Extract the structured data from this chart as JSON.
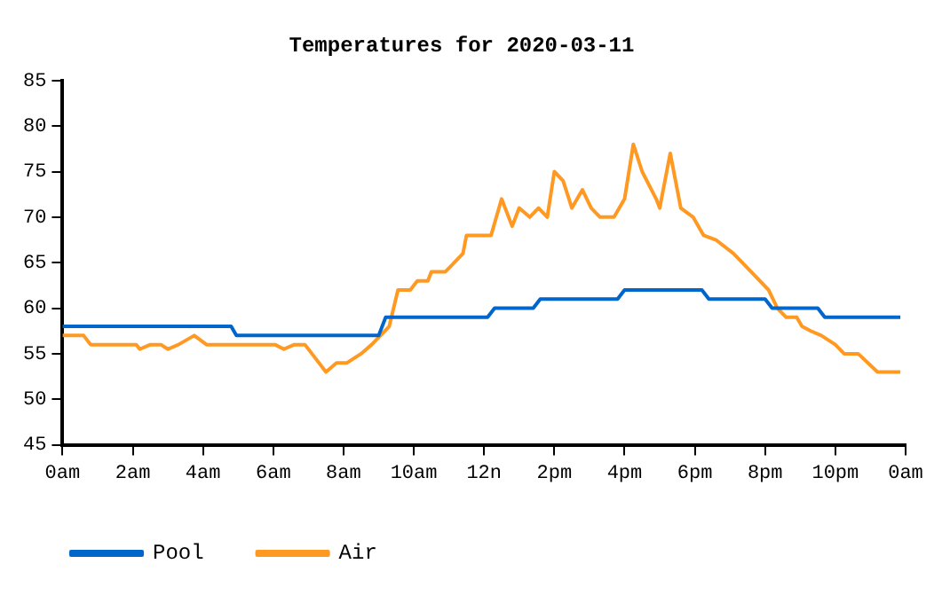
{
  "chart_data": {
    "type": "line",
    "title": "Temperatures for 2020-03-11",
    "xlim": [
      "2020-03-11T00:00",
      "2020-03-12T00:00"
    ],
    "xticks": [
      {
        "value": "2020-03-11T00:00",
        "label": "0am"
      },
      {
        "value": "2020-03-11T02:00",
        "label": "2am"
      },
      {
        "value": "2020-03-11T04:00",
        "label": "4am"
      },
      {
        "value": "2020-03-11T06:00",
        "label": "6am"
      },
      {
        "value": "2020-03-11T08:00",
        "label": "8am"
      },
      {
        "value": "2020-03-11T10:00",
        "label": "10am"
      },
      {
        "value": "2020-03-11T12:00",
        "label": "12n"
      },
      {
        "value": "2020-03-11T14:00",
        "label": "2pm"
      },
      {
        "value": "2020-03-11T16:00",
        "label": "4pm"
      },
      {
        "value": "2020-03-11T18:00",
        "label": "6pm"
      },
      {
        "value": "2020-03-11T20:00",
        "label": "8pm"
      },
      {
        "value": "2020-03-11T22:00",
        "label": "10pm"
      },
      {
        "value": "2020-03-12T00:00",
        "label": "0am"
      }
    ],
    "ylim": [
      45,
      85
    ],
    "yticks": [
      45,
      50,
      55,
      60,
      65,
      70,
      75,
      80,
      85
    ],
    "grid": false,
    "legend": "bottom left",
    "marker": "none",
    "line_style": "solid",
    "series": [
      {
        "name": "Pool",
        "color": "#0066cc",
        "x": [
          "2020-03-11T00:00",
          "2020-03-11T04:48",
          "2020-03-11T04:57",
          "2020-03-11T09:00",
          "2020-03-11T09:12",
          "2020-03-11T12:06",
          "2020-03-11T12:18",
          "2020-03-11T13:24",
          "2020-03-11T13:36",
          "2020-03-11T15:48",
          "2020-03-11T16:00",
          "2020-03-11T18:12",
          "2020-03-11T18:24",
          "2020-03-11T20:00",
          "2020-03-11T20:12",
          "2020-03-11T21:30",
          "2020-03-11T21:42",
          "2020-03-11T23:51"
        ],
        "values": [
          58,
          58,
          57,
          57,
          59,
          59,
          60,
          60,
          61,
          61,
          62,
          62,
          61,
          61,
          60,
          60,
          59,
          59
        ]
      },
      {
        "name": "Air",
        "color": "#ff9922",
        "x": [
          "2020-03-11T00:00",
          "2020-03-11T00:36",
          "2020-03-11T00:48",
          "2020-03-11T02:06",
          "2020-03-11T02:12",
          "2020-03-11T02:30",
          "2020-03-11T02:48",
          "2020-03-11T03:00",
          "2020-03-11T03:18",
          "2020-03-11T03:45",
          "2020-03-11T04:06",
          "2020-03-11T06:03",
          "2020-03-11T06:18",
          "2020-03-11T06:36",
          "2020-03-11T06:54",
          "2020-03-11T07:06",
          "2020-03-11T07:30",
          "2020-03-11T07:48",
          "2020-03-11T08:06",
          "2020-03-11T08:30",
          "2020-03-11T08:48",
          "2020-03-11T09:18",
          "2020-03-11T09:33",
          "2020-03-11T09:54",
          "2020-03-11T10:06",
          "2020-03-11T10:24",
          "2020-03-11T10:30",
          "2020-03-11T10:54",
          "2020-03-11T11:24",
          "2020-03-11T11:30",
          "2020-03-11T12:12",
          "2020-03-11T12:30",
          "2020-03-11T12:48",
          "2020-03-11T13:00",
          "2020-03-11T13:18",
          "2020-03-11T13:33",
          "2020-03-11T13:48",
          "2020-03-11T14:00",
          "2020-03-11T14:15",
          "2020-03-11T14:30",
          "2020-03-11T14:48",
          "2020-03-11T15:03",
          "2020-03-11T15:18",
          "2020-03-11T15:42",
          "2020-03-11T16:00",
          "2020-03-11T16:15",
          "2020-03-11T16:30",
          "2020-03-11T16:54",
          "2020-03-11T17:00",
          "2020-03-11T17:18",
          "2020-03-11T17:36",
          "2020-03-11T17:57",
          "2020-03-11T18:15",
          "2020-03-11T18:36",
          "2020-03-11T19:06",
          "2020-03-11T19:36",
          "2020-03-11T20:06",
          "2020-03-11T20:21",
          "2020-03-11T20:36",
          "2020-03-11T20:54",
          "2020-03-11T21:03",
          "2020-03-11T21:18",
          "2020-03-11T21:36",
          "2020-03-11T22:00",
          "2020-03-11T22:15",
          "2020-03-11T22:39",
          "2020-03-11T23:12",
          "2020-03-11T23:51"
        ],
        "values": [
          57,
          57,
          56,
          56,
          55.5,
          56,
          56,
          55.5,
          56,
          57,
          56,
          56,
          55.5,
          56,
          56,
          55,
          53,
          54,
          54,
          55,
          56,
          58,
          62,
          62,
          63,
          63,
          64,
          64,
          66,
          68,
          68,
          72,
          69,
          71,
          70,
          71,
          70,
          75,
          74,
          71,
          73,
          71,
          70,
          70,
          72,
          78,
          75,
          72,
          71,
          77,
          71,
          70,
          68,
          67.5,
          66,
          64,
          62,
          60,
          59,
          59,
          58,
          57.5,
          57,
          56,
          55,
          55,
          53,
          53
        ]
      }
    ]
  }
}
